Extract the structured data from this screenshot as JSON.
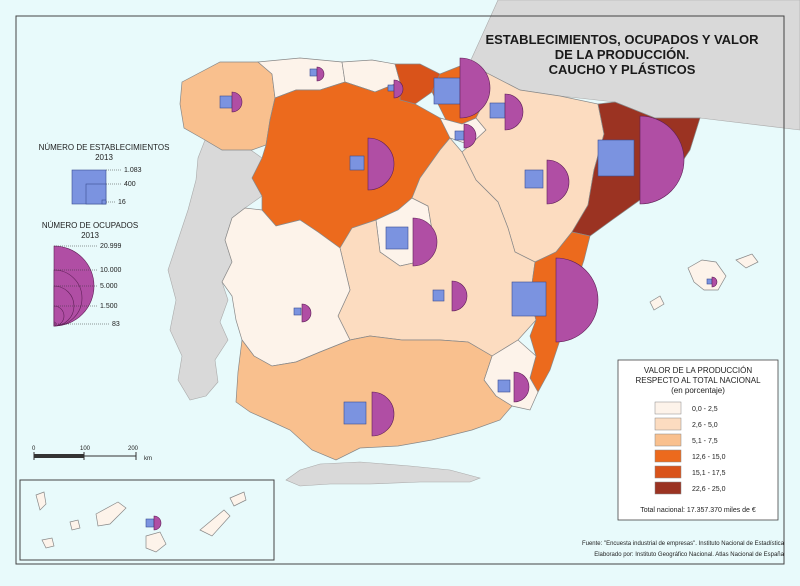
{
  "title": {
    "line1": "ESTABLECIMIENTOS, OCUPADOS Y VALOR",
    "line2": "DE LA PRODUCCIÓN.",
    "line3": "CAUCHO Y PLÁSTICOS"
  },
  "legend_establishments": {
    "title_line1": "NÚMERO DE ESTABLECIMIENTOS",
    "title_line2": "2013",
    "values": [
      "1.083",
      "400",
      "16"
    ]
  },
  "legend_employed": {
    "title_line1": "NÚMERO DE OCUPADOS",
    "title_line2": "2013",
    "values": [
      "20.999",
      "10.000",
      "5.000",
      "1.500",
      "83"
    ]
  },
  "legend_production": {
    "title_line1": "VALOR DE LA PRODUCCIÓN",
    "title_line2": "RESPECTO AL TOTAL NACIONAL",
    "title_line3": "(en porcentaje)",
    "classes": [
      {
        "label": "0,0 - 2,5",
        "color": "#fdf3ea"
      },
      {
        "label": "2,6 - 5,0",
        "color": "#fcdcc0"
      },
      {
        "label": "5,1 - 7,5",
        "color": "#f9c08e"
      },
      {
        "label": "12,6 - 15,0",
        "color": "#ec6a1d"
      },
      {
        "label": "15,1 - 17,5",
        "color": "#d9531a"
      },
      {
        "label": "22,6 - 25,0",
        "color": "#9b3322"
      }
    ],
    "total": "Total nacional: 17.357.370 miles de €"
  },
  "scale": {
    "labels": [
      "0",
      "100",
      "200"
    ],
    "unit": "km"
  },
  "source": "Fuente: \"Encuesta industrial de empresas\". Instituto Nacional de Estadística",
  "credit": "Elaborado por: Instituto Geográfico Nacional. Atlas Nacional de España",
  "colors": {
    "sea": "#e8fafb",
    "foreign_land": "#d9d9d9",
    "square": "#7b93e0",
    "semicircle": "#b04ea4"
  }
}
